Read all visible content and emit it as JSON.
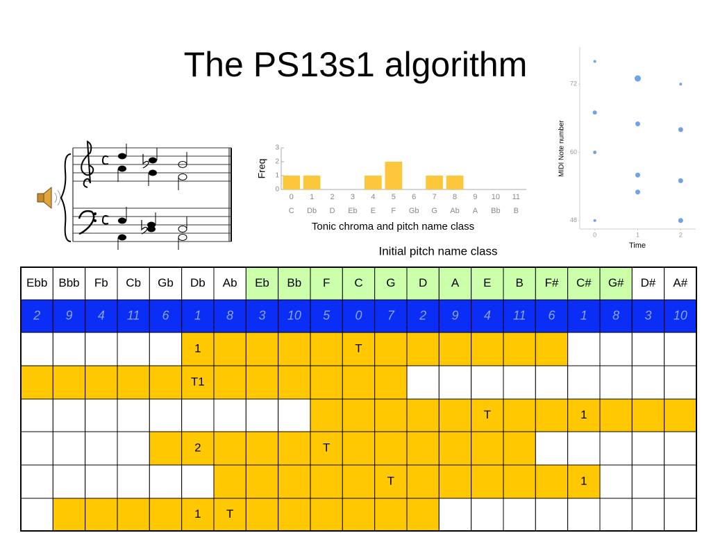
{
  "title": "The PS13s1 algorithm",
  "chart_data": [
    {
      "type": "bar",
      "ylabel": "Freq",
      "xlabel": "Tonic chroma and pitch name class",
      "categories": [
        "0",
        "1",
        "2",
        "3",
        "4",
        "5",
        "6",
        "7",
        "8",
        "9",
        "10",
        "11"
      ],
      "pitch_names": [
        "C",
        "Db",
        "D",
        "Eb",
        "E",
        "F",
        "Gb",
        "G",
        "Ab",
        "A",
        "Bb",
        "B"
      ],
      "values": [
        1,
        1,
        0,
        0,
        1,
        2,
        0,
        1,
        1,
        0,
        0,
        0
      ],
      "color": "#fcc73a",
      "ylim": [
        0,
        3
      ],
      "yticks": [
        0,
        1,
        2,
        3
      ],
      "grid": false
    },
    {
      "type": "scatter",
      "ylabel": "MIDI Note number",
      "xlabel": "Time",
      "color": "#6fa3e6",
      "x": [
        0,
        0,
        0,
        0,
        1,
        1,
        1,
        1,
        2,
        2,
        2,
        2
      ],
      "y": [
        76,
        67,
        60,
        48,
        73,
        65,
        56,
        53,
        72,
        64,
        55,
        48
      ],
      "sizes": [
        2,
        3,
        2.5,
        2,
        4.5,
        3.5,
        3.5,
        3.5,
        2,
        3.5,
        3.5,
        3.5
      ],
      "xlim": [
        -0.35,
        2.35
      ],
      "xticks": [
        0,
        1,
        2
      ],
      "ylim": [
        46.5,
        78.5
      ],
      "yticks": [
        48,
        60,
        72
      ]
    }
  ],
  "caption": "Initial pitch name class",
  "table": {
    "header": [
      "Ebb",
      "Bbb",
      "Fb",
      "Cb",
      "Gb",
      "Db",
      "Ab",
      "Eb",
      "Bb",
      "F",
      "C",
      "G",
      "D",
      "A",
      "E",
      "B",
      "F#",
      "C#",
      "G#",
      "D#",
      "A#"
    ],
    "header_green": [
      7,
      18
    ],
    "numbers": [
      2,
      9,
      4,
      11,
      6,
      1,
      8,
      3,
      10,
      5,
      0,
      7,
      2,
      9,
      4,
      11,
      6,
      1,
      8,
      3,
      10
    ],
    "rows": [
      {
        "yellow": [
          5,
          16
        ],
        "marks": {
          "5": "1",
          "10": "T"
        }
      },
      {
        "yellow": [
          0,
          11
        ],
        "marks": {
          "5": "T1"
        }
      },
      {
        "yellow": [
          9,
          20
        ],
        "marks": {
          "14": "T",
          "17": "1"
        }
      },
      {
        "yellow": [
          4,
          15
        ],
        "marks": {
          "5": "2",
          "9": "T"
        }
      },
      {
        "yellow": [
          6,
          17
        ],
        "marks": {
          "11": "T",
          "17": "1"
        }
      },
      {
        "yellow": [
          1,
          12
        ],
        "marks": {
          "5": "1",
          "6": "T"
        }
      }
    ]
  }
}
